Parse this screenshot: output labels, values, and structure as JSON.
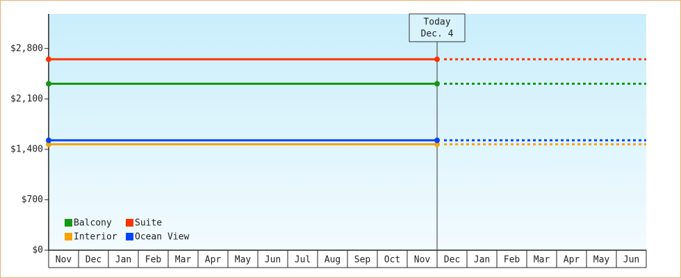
{
  "chart_data": {
    "type": "line",
    "categories": [
      "Nov",
      "Dec",
      "Jan",
      "Feb",
      "Mar",
      "Apr",
      "May",
      "Jun",
      "Jul",
      "Aug",
      "Sep",
      "Oct",
      "Nov",
      "Dec",
      "Jan",
      "Feb",
      "Mar",
      "Apr",
      "May",
      "Jun"
    ],
    "x": [
      0,
      13
    ],
    "xlim": [
      0,
      20
    ],
    "series": [
      {
        "name": "Balcony",
        "color": "#119911",
        "values": [
          2310,
          2310
        ]
      },
      {
        "name": "Suite",
        "color": "#ff3300",
        "values": [
          2650,
          2650
        ]
      },
      {
        "name": "Interior",
        "color": "#f5a300",
        "values": [
          1470,
          1470
        ]
      },
      {
        "name": "Ocean View",
        "color": "#0044ff",
        "values": [
          1525,
          1525
        ]
      }
    ],
    "ylim": [
      0,
      3280
    ],
    "yticks": [
      {
        "value": 0,
        "label": "$0"
      },
      {
        "value": 700,
        "label": "$700"
      },
      {
        "value": 1400,
        "label": "$1,400"
      },
      {
        "value": 2100,
        "label": "$2,100"
      },
      {
        "value": 2800,
        "label": "$2,800"
      }
    ],
    "annotation": {
      "lines": [
        "Today",
        "Dec. 4"
      ],
      "x": 13
    },
    "legend": "bottom-left"
  }
}
